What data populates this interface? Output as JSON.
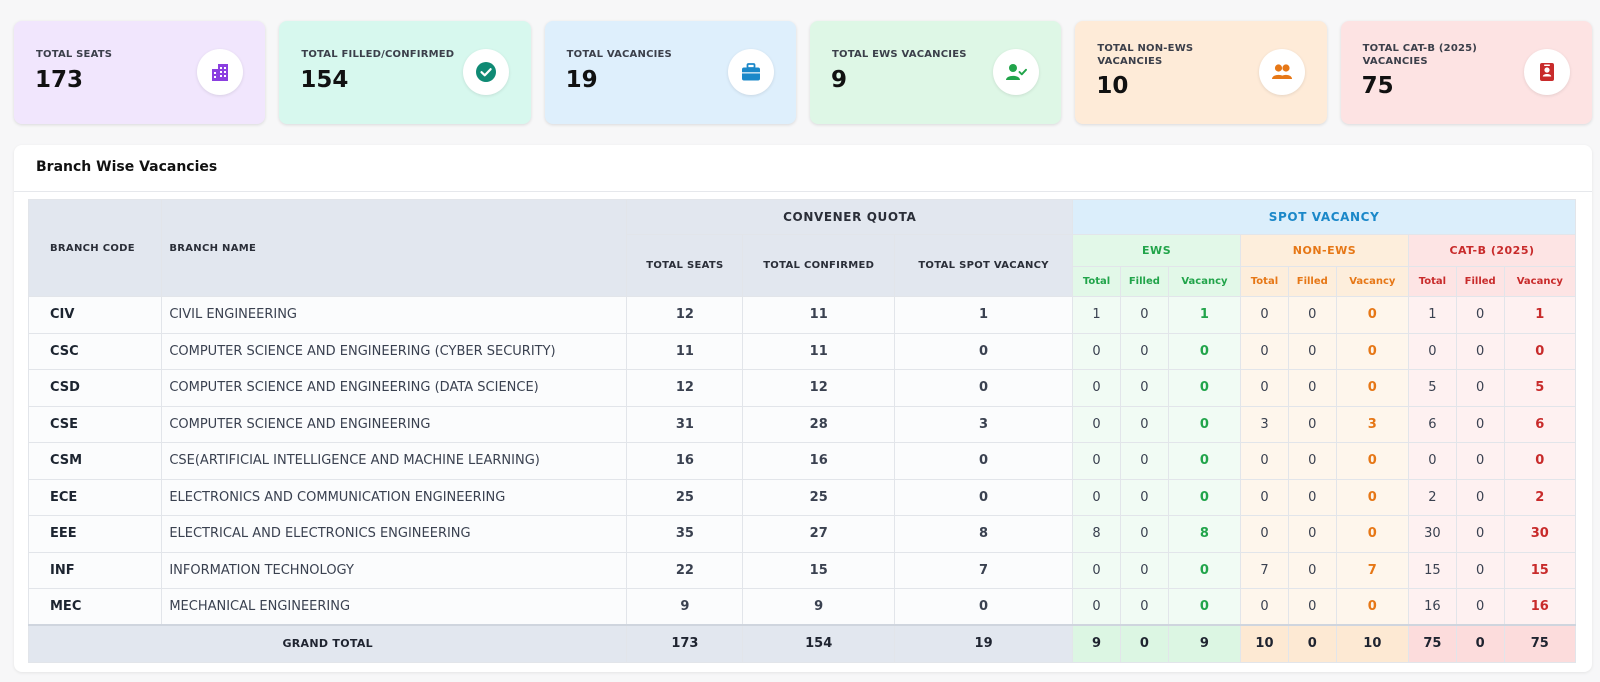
{
  "cards": [
    {
      "label": "TOTAL SEATS",
      "value": "173",
      "icon": "building-icon",
      "bg": "#f1e6fd",
      "accent": "#8b3fe0"
    },
    {
      "label": "TOTAL FILLED/CONFIRMED",
      "value": "154",
      "icon": "check-circle-icon",
      "bg": "#d7f8ee",
      "accent": "#0f8a74"
    },
    {
      "label": "TOTAL VACANCIES",
      "value": "19",
      "icon": "briefcase-icon",
      "bg": "#deeffc",
      "accent": "#1b88c9"
    },
    {
      "label": "TOTAL EWS VACANCIES",
      "value": "9",
      "icon": "user-check-icon",
      "bg": "#def7e6",
      "accent": "#21a44a"
    },
    {
      "label": "TOTAL NON-EWS VACANCIES",
      "value": "10",
      "icon": "users-icon",
      "bg": "#feebd8",
      "accent": "#e67716"
    },
    {
      "label": "TOTAL CAT-B (2025) VACANCIES",
      "value": "75",
      "icon": "id-badge-icon",
      "bg": "#fde3e3",
      "accent": "#c82b2b"
    }
  ],
  "panel": {
    "title": "Branch Wise Vacancies"
  },
  "headers": {
    "branch_code": "BRANCH CODE",
    "branch_name": "BRANCH NAME",
    "convener_quota": "CONVENER QUOTA",
    "spot_vacancy": "SPOT VACANCY",
    "total_seats": "TOTAL SEATS",
    "total_confirmed": "TOTAL CONFIRMED",
    "total_spot_vacancy": "TOTAL SPOT VACANCY",
    "ews": "EWS",
    "non_ews": "NON-EWS",
    "catb": "CAT-B (2025)",
    "sub_total": "Total",
    "sub_filled": "Filled",
    "sub_vacancy": "Vacancy"
  },
  "rows": [
    {
      "code": "CIV",
      "name": "CIVIL ENGINEERING",
      "seats": "12",
      "confirmed": "11",
      "spot": "1",
      "ews": [
        "1",
        "0",
        "1"
      ],
      "nonews": [
        "0",
        "0",
        "0"
      ],
      "catb": [
        "1",
        "0",
        "1"
      ]
    },
    {
      "code": "CSC",
      "name": "COMPUTER SCIENCE AND ENGINEERING (CYBER SECURITY)",
      "seats": "11",
      "confirmed": "11",
      "spot": "0",
      "ews": [
        "0",
        "0",
        "0"
      ],
      "nonews": [
        "0",
        "0",
        "0"
      ],
      "catb": [
        "0",
        "0",
        "0"
      ]
    },
    {
      "code": "CSD",
      "name": "COMPUTER SCIENCE AND ENGINEERING (DATA SCIENCE)",
      "seats": "12",
      "confirmed": "12",
      "spot": "0",
      "ews": [
        "0",
        "0",
        "0"
      ],
      "nonews": [
        "0",
        "0",
        "0"
      ],
      "catb": [
        "5",
        "0",
        "5"
      ]
    },
    {
      "code": "CSE",
      "name": "COMPUTER SCIENCE AND ENGINEERING",
      "seats": "31",
      "confirmed": "28",
      "spot": "3",
      "ews": [
        "0",
        "0",
        "0"
      ],
      "nonews": [
        "3",
        "0",
        "3"
      ],
      "catb": [
        "6",
        "0",
        "6"
      ]
    },
    {
      "code": "CSM",
      "name": "CSE(ARTIFICIAL INTELLIGENCE AND MACHINE LEARNING)",
      "seats": "16",
      "confirmed": "16",
      "spot": "0",
      "ews": [
        "0",
        "0",
        "0"
      ],
      "nonews": [
        "0",
        "0",
        "0"
      ],
      "catb": [
        "0",
        "0",
        "0"
      ]
    },
    {
      "code": "ECE",
      "name": "ELECTRONICS AND COMMUNICATION ENGINEERING",
      "seats": "25",
      "confirmed": "25",
      "spot": "0",
      "ews": [
        "0",
        "0",
        "0"
      ],
      "nonews": [
        "0",
        "0",
        "0"
      ],
      "catb": [
        "2",
        "0",
        "2"
      ]
    },
    {
      "code": "EEE",
      "name": "ELECTRICAL AND ELECTRONICS ENGINEERING",
      "seats": "35",
      "confirmed": "27",
      "spot": "8",
      "ews": [
        "8",
        "0",
        "8"
      ],
      "nonews": [
        "0",
        "0",
        "0"
      ],
      "catb": [
        "30",
        "0",
        "30"
      ]
    },
    {
      "code": "INF",
      "name": "INFORMATION TECHNOLOGY",
      "seats": "22",
      "confirmed": "15",
      "spot": "7",
      "ews": [
        "0",
        "0",
        "0"
      ],
      "nonews": [
        "7",
        "0",
        "7"
      ],
      "catb": [
        "15",
        "0",
        "15"
      ]
    },
    {
      "code": "MEC",
      "name": "MECHANICAL ENGINEERING",
      "seats": "9",
      "confirmed": "9",
      "spot": "0",
      "ews": [
        "0",
        "0",
        "0"
      ],
      "nonews": [
        "0",
        "0",
        "0"
      ],
      "catb": [
        "16",
        "0",
        "16"
      ]
    }
  ],
  "grand_total": {
    "label": "GRAND TOTAL",
    "seats": "173",
    "confirmed": "154",
    "spot": "19",
    "ews": [
      "9",
      "0",
      "9"
    ],
    "nonews": [
      "10",
      "0",
      "10"
    ],
    "catb": [
      "75",
      "0",
      "75"
    ]
  }
}
